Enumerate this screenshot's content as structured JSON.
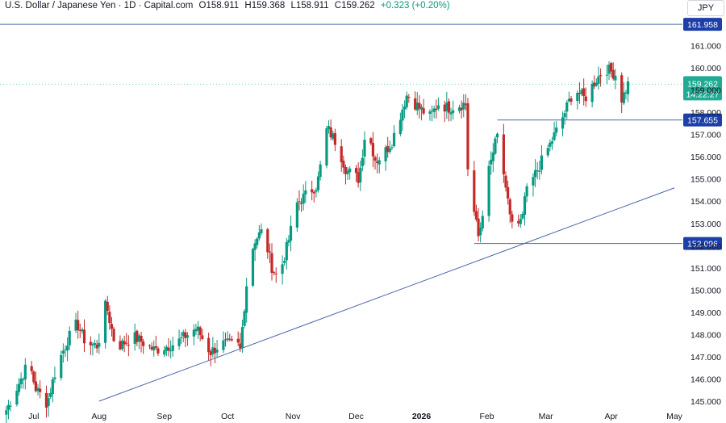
{
  "header": {
    "title": "U.S. Dollar / Japanese Yen · 1D · Capital.com",
    "open": "O158.911",
    "high": "H159.368",
    "low": "L158.911",
    "close": "C159.262",
    "change": "+0.323 (+0.20%)"
  },
  "currency_button": "JPY",
  "colors": {
    "up": "#089981",
    "down": "#c62828",
    "line": "#4a67a8",
    "label_bg": "#1e3fa8",
    "price_label_bg": "#22ab94"
  },
  "chart_data": {
    "type": "candlestick",
    "title": "U.S. Dollar / Japanese Yen · 1D · Capital.com",
    "ylim": [
      144.6,
      162.4
    ],
    "y_ticks": [
      "145.000",
      "146.000",
      "147.000",
      "148.000",
      "149.000",
      "150.000",
      "151.000",
      "152.000",
      "153.000",
      "154.000",
      "155.000",
      "156.000",
      "157.000",
      "158.000",
      "159.000",
      "160.000",
      "161.000"
    ],
    "x_ticks": [
      "Jul",
      "Aug",
      "Sep",
      "Oct",
      "Nov",
      "Dec",
      "2026",
      "Feb",
      "Mar",
      "Apr",
      "May"
    ],
    "last_price": "159.262",
    "countdown": "14:22:27",
    "horizontal_levels": [
      {
        "value": 161.958,
        "label": "161.958",
        "start": "2025-06-15"
      },
      {
        "value": 157.655,
        "label": "157.655",
        "start": "2026-02-06"
      },
      {
        "value": 152.096,
        "label": "152.096",
        "start": "2026-01-26"
      }
    ],
    "trendline": {
      "start": {
        "date": "2025-08-01",
        "value": 145.0
      },
      "end": {
        "date": "2026-05-01",
        "value": 154.6
      }
    },
    "segments": [
      {
        "from": "2025-06-18",
        "to": "2025-07-31",
        "points": [
          [
            0,
            144.6
          ],
          [
            0.15,
            145.9
          ],
          [
            0.25,
            146.8
          ],
          [
            0.32,
            145.6
          ],
          [
            0.45,
            144.9
          ],
          [
            0.55,
            146.5
          ],
          [
            0.68,
            147.8
          ],
          [
            0.78,
            148.5
          ],
          [
            0.88,
            147.6
          ],
          [
            1,
            147.5
          ]
        ]
      },
      {
        "from": "2025-08-01",
        "to": "2025-10-06",
        "points": [
          [
            0,
            147.8
          ],
          [
            0.05,
            149.4
          ],
          [
            0.12,
            147.4
          ],
          [
            0.25,
            147.9
          ],
          [
            0.4,
            147.3
          ],
          [
            0.55,
            147.6
          ],
          [
            0.7,
            148.3
          ],
          [
            0.8,
            147.2
          ],
          [
            0.88,
            147.6
          ],
          [
            1,
            147.5
          ]
        ]
      },
      {
        "from": "2025-10-07",
        "to": "2025-11-12",
        "points": [
          [
            0,
            147.3
          ],
          [
            0.08,
            150.2
          ],
          [
            0.18,
            152.2
          ],
          [
            0.3,
            152.7
          ],
          [
            0.42,
            151.0
          ],
          [
            0.5,
            150.5
          ],
          [
            0.62,
            152.0
          ],
          [
            0.75,
            153.9
          ],
          [
            0.87,
            154.3
          ],
          [
            1,
            154.7
          ]
        ]
      },
      {
        "from": "2025-11-13",
        "to": "2025-12-18",
        "points": [
          [
            0,
            155.0
          ],
          [
            0.12,
            157.3
          ],
          [
            0.25,
            156.6
          ],
          [
            0.38,
            155.4
          ],
          [
            0.55,
            155.0
          ],
          [
            0.65,
            157.4
          ],
          [
            0.78,
            155.8
          ],
          [
            0.9,
            156.2
          ],
          [
            1,
            156.7
          ]
        ]
      },
      {
        "from": "2025-12-19",
        "to": "2026-01-22",
        "points": [
          [
            0,
            157.0
          ],
          [
            0.18,
            158.8
          ],
          [
            0.35,
            158.2
          ],
          [
            0.5,
            157.8
          ],
          [
            0.62,
            158.4
          ],
          [
            0.75,
            158.2
          ],
          [
            0.87,
            158.3
          ],
          [
            1,
            158.4
          ]
        ]
      },
      {
        "from": "2026-01-23",
        "to": "2026-02-18",
        "points": [
          [
            0,
            155.5
          ],
          [
            0.08,
            154.0
          ],
          [
            0.2,
            152.3
          ],
          [
            0.35,
            155.0
          ],
          [
            0.5,
            156.6
          ],
          [
            0.58,
            157.3
          ],
          [
            0.68,
            154.5
          ],
          [
            0.8,
            153.1
          ],
          [
            0.9,
            152.8
          ],
          [
            1,
            153.2
          ]
        ]
      },
      {
        "from": "2026-02-19",
        "to": "2026-04-09",
        "points": [
          [
            0,
            154.2
          ],
          [
            0.12,
            155.4
          ],
          [
            0.25,
            156.6
          ],
          [
            0.38,
            157.9
          ],
          [
            0.48,
            159.1
          ],
          [
            0.58,
            158.6
          ],
          [
            0.68,
            159.4
          ],
          [
            0.78,
            160.0
          ],
          [
            0.88,
            159.7
          ],
          [
            0.94,
            158.6
          ],
          [
            1,
            159.262
          ]
        ]
      }
    ]
  }
}
